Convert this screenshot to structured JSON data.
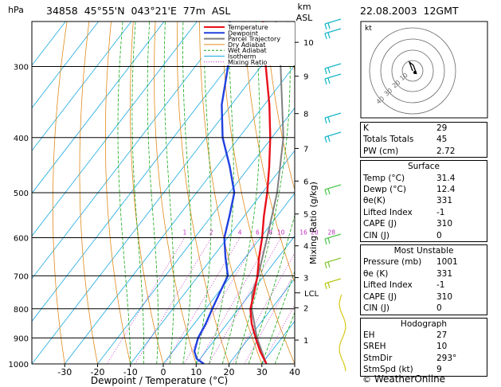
{
  "header": {
    "units_left": "hPa",
    "station_line": "34858  45°55'N  043°21'E  77m  ASL",
    "units_right_1": "km",
    "units_right_2": "ASL",
    "datetime": "22.08.2003  12GMT"
  },
  "chart_data": {
    "type": "line",
    "subtype": "skew-t log-p",
    "xlabel": "Dewpoint / Temperature (°C)",
    "ylabel_right": "Mixing Ratio (g/kg)",
    "x_ticks": [
      -30,
      -20,
      -10,
      0,
      10,
      20,
      30,
      40
    ],
    "xlim": [
      -40,
      40
    ],
    "pressure_levels": [
      300,
      400,
      500,
      600,
      700,
      800,
      900,
      1000
    ],
    "ylim_hpa": [
      250,
      1000
    ],
    "y_scale": "log",
    "km_ticks": [
      {
        "label": "1",
        "p": 908
      },
      {
        "label": "2",
        "p": 797
      },
      {
        "label": "3",
        "p": 705
      },
      {
        "label": "4",
        "p": 620
      },
      {
        "label": "5",
        "p": 545
      },
      {
        "label": "6",
        "p": 477
      },
      {
        "label": "7",
        "p": 418
      },
      {
        "label": "8",
        "p": 363
      },
      {
        "label": "9",
        "p": 312
      },
      {
        "label": "10",
        "p": 272
      }
    ],
    "lcl_label": "LCL",
    "lcl_p": 750,
    "mixing_ratio_labels": [
      "1",
      "2",
      "4",
      "6",
      "8",
      "10",
      "16",
      "20",
      "28"
    ],
    "mixing_ratio_values": [
      1,
      2,
      4,
      6,
      8,
      10,
      16,
      20,
      28
    ],
    "legend": {
      "position": "top-right",
      "entries": [
        {
          "label": "Temperature",
          "color": "#e8101a"
        },
        {
          "label": "Dewpoint",
          "color": "#2040e0"
        },
        {
          "label": "Parcel Trajectory",
          "color": "#808080"
        },
        {
          "label": "Dry Adiabat",
          "color": "#e08a1a"
        },
        {
          "label": "Wet Adiabat",
          "color": "#18a818"
        },
        {
          "label": "Isotherm",
          "color": "#18a8e0"
        },
        {
          "label": "Mixing Ratio",
          "color": "#c030c0"
        }
      ]
    },
    "series": [
      {
        "name": "Temperature",
        "color": "#e8101a",
        "points": [
          {
            "p": 1000,
            "t": 31.4
          },
          {
            "p": 950,
            "t": 26.5
          },
          {
            "p": 900,
            "t": 22.0
          },
          {
            "p": 850,
            "t": 17.5
          },
          {
            "p": 800,
            "t": 13.6
          },
          {
            "p": 750,
            "t": 11.0
          },
          {
            "p": 700,
            "t": 8.0
          },
          {
            "p": 650,
            "t": 4.2
          },
          {
            "p": 600,
            "t": 0.5
          },
          {
            "p": 550,
            "t": -4.0
          },
          {
            "p": 500,
            "t": -8.5
          },
          {
            "p": 450,
            "t": -14.0
          },
          {
            "p": 400,
            "t": -20.5
          },
          {
            "p": 350,
            "t": -28.5
          },
          {
            "p": 300,
            "t": -38.5
          },
          {
            "p": 275,
            "t": -44.0
          },
          {
            "p": 250,
            "t": -50.0
          }
        ]
      },
      {
        "name": "Dewpoint",
        "color": "#2040e0",
        "points": [
          {
            "p": 1000,
            "t": 12.4
          },
          {
            "p": 980,
            "t": 9.0
          },
          {
            "p": 950,
            "t": 6.5
          },
          {
            "p": 900,
            "t": 4.5
          },
          {
            "p": 850,
            "t": 3.5
          },
          {
            "p": 800,
            "t": 2.0
          },
          {
            "p": 750,
            "t": 0.5
          },
          {
            "p": 700,
            "t": -1.0
          },
          {
            "p": 650,
            "t": -6.0
          },
          {
            "p": 600,
            "t": -11.0
          },
          {
            "p": 550,
            "t": -14.5
          },
          {
            "p": 500,
            "t": -18.5
          },
          {
            "p": 450,
            "t": -26.0
          },
          {
            "p": 400,
            "t": -35.0
          },
          {
            "p": 350,
            "t": -43.0
          },
          {
            "p": 300,
            "t": -50.0
          },
          {
            "p": 275,
            "t": -55.0
          },
          {
            "p": 250,
            "t": -60.0
          }
        ]
      },
      {
        "name": "Parcel Trajectory",
        "color": "#808080",
        "points": [
          {
            "p": 1000,
            "t": 31.4
          },
          {
            "p": 900,
            "t": 22.4
          },
          {
            "p": 800,
            "t": 14.0
          },
          {
            "p": 750,
            "t": 10.4
          },
          {
            "p": 700,
            "t": 8.2
          },
          {
            "p": 600,
            "t": 2.0
          },
          {
            "p": 500,
            "t": -5.5
          },
          {
            "p": 400,
            "t": -16.5
          },
          {
            "p": 300,
            "t": -34.0
          },
          {
            "p": 250,
            "t": -46.0
          }
        ]
      }
    ]
  },
  "hodograph": {
    "label": "kt",
    "ring_labels": [
      "10",
      "20",
      "30",
      "40"
    ]
  },
  "indices": {
    "rows": [
      {
        "label": "K",
        "value": "29"
      },
      {
        "label": "Totals Totals",
        "value": "45"
      },
      {
        "label": "PW (cm)",
        "value": "2.72"
      }
    ]
  },
  "surface": {
    "title": "Surface",
    "rows": [
      {
        "label": "Temp (°C)",
        "value": "31.4"
      },
      {
        "label": "Dewp (°C)",
        "value": "12.4"
      },
      {
        "label": "θe(K)",
        "value": "331"
      },
      {
        "label": "Lifted Index",
        "value": "-1"
      },
      {
        "label": "CAPE (J)",
        "value": "310"
      },
      {
        "label": "CIN (J)",
        "value": "0"
      }
    ]
  },
  "most_unstable": {
    "title": "Most Unstable",
    "rows": [
      {
        "label": "Pressure (mb)",
        "value": "1001"
      },
      {
        "label": "θe (K)",
        "value": "331"
      },
      {
        "label": "Lifted Index",
        "value": "-1"
      },
      {
        "label": "CAPE (J)",
        "value": "310"
      },
      {
        "label": "CIN (J)",
        "value": "0"
      }
    ]
  },
  "hodograph_table": {
    "title": "Hodograph",
    "rows": [
      {
        "label": "EH",
        "value": "27"
      },
      {
        "label": "SREH",
        "value": "10"
      },
      {
        "label": "StmDir",
        "value": "293°"
      },
      {
        "label": "StmSpd (kt)",
        "value": "9"
      }
    ]
  },
  "credit": {
    "symbol": "©",
    "text": "WeatherOnline"
  }
}
